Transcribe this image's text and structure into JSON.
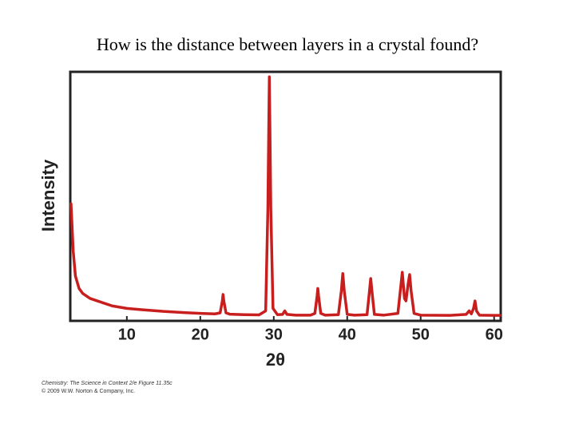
{
  "chart_data": {
    "type": "line",
    "title": "How is the distance between layers in a crystal found?",
    "xlabel": "2θ",
    "ylabel": "Intensity",
    "caption": [
      "Chemistry: The Science in Context 2/e Figure 11.35c",
      "© 2009 W.W. Norton & Company, Inc."
    ],
    "xlim": [
      2.3,
      60.9
    ],
    "ylim": [
      0,
      100
    ],
    "xticks": [
      10,
      20,
      30,
      40,
      50,
      60
    ],
    "x": [
      2.4,
      2.7,
      3,
      3.5,
      4,
      5,
      6,
      8,
      10,
      12,
      15,
      18,
      20,
      22,
      22.7,
      23.0,
      23.1,
      23.2,
      23.5,
      24,
      26,
      28,
      28.9,
      29.2,
      29.4,
      29.6,
      29.9,
      30.5,
      31.2,
      31.5,
      31.8,
      33,
      35,
      35.6,
      35.9,
      36.0,
      36.1,
      36.4,
      37,
      38.8,
      39.2,
      39.4,
      39.6,
      40,
      41,
      42.7,
      43.0,
      43.2,
      43.4,
      43.7,
      45,
      46.9,
      47.3,
      47.5,
      47.8,
      48.0,
      48.3,
      48.5,
      48.7,
      49.1,
      50,
      54,
      56.2,
      56.6,
      56.9,
      57.2,
      57.4,
      57.6,
      58,
      60,
      60.8
    ],
    "series": [
      {
        "color": "#c81e1e",
        "values": [
          47,
          28,
          18,
          13,
          11,
          9,
          8,
          6,
          5,
          4.5,
          3.8,
          3.3,
          3,
          2.8,
          3.2,
          8,
          10.6,
          8,
          3.2,
          2.7,
          2.5,
          2.4,
          4,
          45,
          98,
          45,
          5,
          2.5,
          2.6,
          4,
          2.6,
          2.3,
          2.3,
          3,
          10,
          13,
          10,
          3,
          2.3,
          2.5,
          12,
          19,
          12,
          2.6,
          2.3,
          2.5,
          11,
          17,
          11,
          2.6,
          2.3,
          3,
          14,
          19.5,
          9,
          8,
          15,
          18.6,
          12,
          3,
          2.3,
          2.2,
          2.6,
          4,
          2.8,
          5,
          8,
          4,
          2.3,
          2.2,
          2.2
        ]
      }
    ]
  }
}
